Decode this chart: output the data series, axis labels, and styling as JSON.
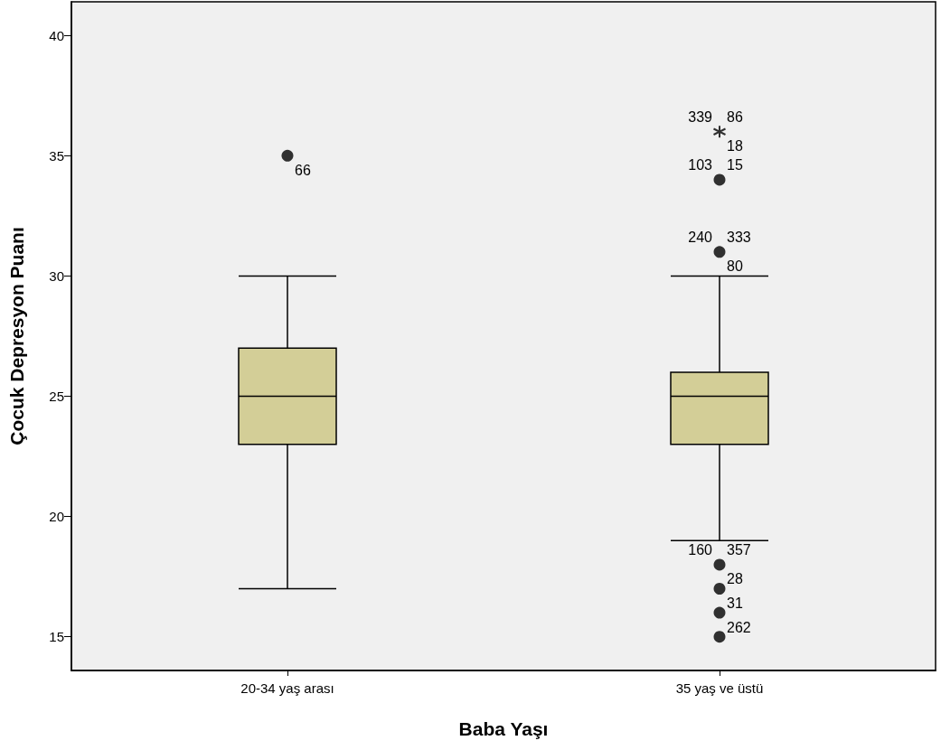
{
  "chart_data": {
    "type": "box",
    "xlabel": "Baba Yaşı",
    "ylabel": "Çocuk Depresyon Puanı",
    "categories": [
      "20-34 yaş arası",
      "35 yaş ve üstü"
    ],
    "ylim": [
      13.6,
      41.4
    ],
    "yticks": [
      15,
      20,
      25,
      30,
      35,
      40
    ],
    "grid": false,
    "series": [
      {
        "color": "#d3ce97",
        "boxes": [
          {
            "low": 17,
            "q1": 23,
            "median": 25,
            "q3": 27,
            "high": 30
          },
          {
            "low": 19,
            "q1": 23,
            "median": 25,
            "q3": 26,
            "high": 30
          }
        ]
      },
      {
        "type": "scatter",
        "marker": "circle",
        "color": "#000000",
        "x": [
          "20-34 yaş arası",
          "35 yaş ve üstü",
          "35 yaş ve üstü",
          "35 yaş ve üstü",
          "35 yaş ve üstü",
          "35 yaş ve üstü",
          "35 yaş ve üstü"
        ],
        "values": [
          35,
          34,
          31,
          18,
          17,
          16,
          15
        ]
      },
      {
        "type": "scatter",
        "marker": "cross",
        "color": "#000000",
        "x": [
          "35 yaş ve üstü"
        ],
        "values": [
          36
        ]
      }
    ],
    "annotations": [
      {
        "text": "66",
        "x": "20-34 yaş arası",
        "y": 35
      },
      {
        "text": "339",
        "x": "35 yaş ve üstü",
        "y": 36
      },
      {
        "text": "86",
        "x": "35 yaş ve üstü",
        "y": 36
      },
      {
        "text": "18",
        "x": "35 yaş ve üstü",
        "y": 36
      },
      {
        "text": "103",
        "x": "35 yaş ve üstü",
        "y": 34
      },
      {
        "text": "15",
        "x": "35 yaş ve üstü",
        "y": 34
      },
      {
        "text": "240",
        "x": "35 yaş ve üstü",
        "y": 31
      },
      {
        "text": "333",
        "x": "35 yaş ve üstü",
        "y": 31
      },
      {
        "text": "80",
        "x": "35 yaş ve üstü",
        "y": 31
      },
      {
        "text": "160",
        "x": "35 yaş ve üstü",
        "y": 18
      },
      {
        "text": "357",
        "x": "35 yaş ve üstü",
        "y": 18
      },
      {
        "text": "28",
        "x": "35 yaş ve üstü",
        "y": 18
      },
      {
        "text": "31",
        "x": "35 yaş ve üstü",
        "y": 17
      },
      {
        "text": "262",
        "x": "35 yaş ve üstü",
        "y": 16
      }
    ]
  }
}
